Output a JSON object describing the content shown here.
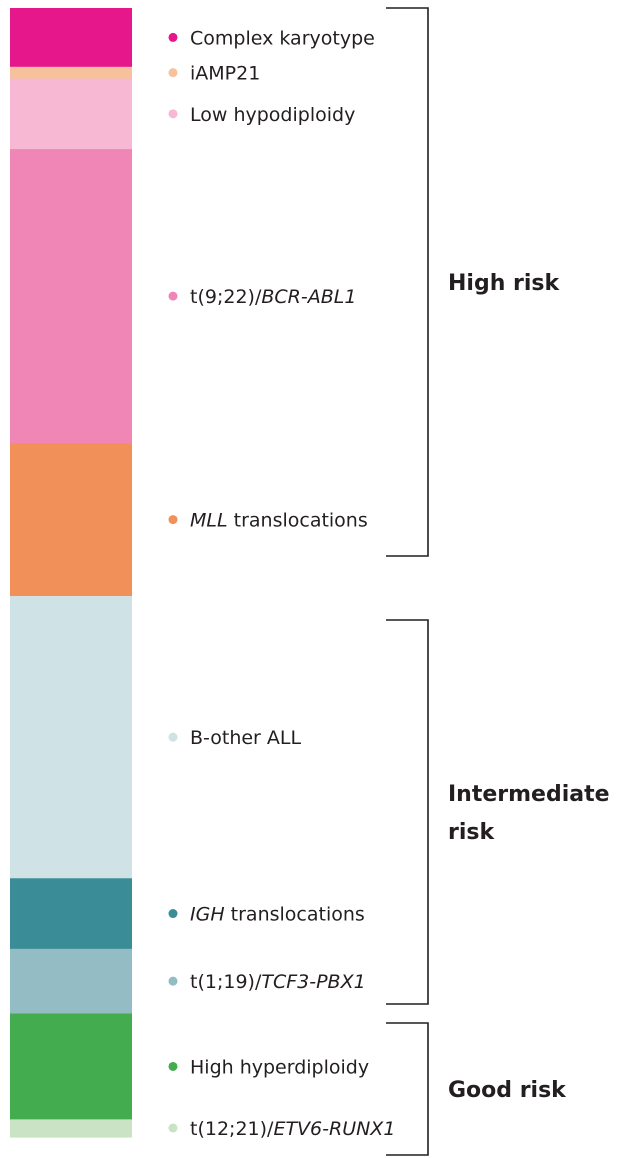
{
  "chart_data": {
    "type": "bar",
    "subtype": "stacked-single-column",
    "categories": [
      "Complex karyotype",
      "iAMP21",
      "Low hypodiploidy",
      "t(9;22)/BCR-ABL1",
      "MLL translocations",
      "B-other ALL",
      "IGH translocations",
      "t(1;19)/TCF3-PBX1",
      "High hyperdiploidy",
      "t(12;21)/ETV6-RUNX1"
    ],
    "series": [
      {
        "values": [
          5,
          1,
          6,
          25,
          13,
          24,
          6,
          5.5,
          9,
          1.5
        ]
      }
    ],
    "legend": [
      {
        "prefix": "",
        "italic": "",
        "suffix": "Complex karyotype",
        "color": "#e6168b"
      },
      {
        "prefix": "",
        "italic": "",
        "suffix": "iAMP21",
        "color": "#f7c19c"
      },
      {
        "prefix": "",
        "italic": "",
        "suffix": "Low hypodiploidy",
        "color": "#f7b8d3"
      },
      {
        "prefix": "t(9;22)/",
        "italic": "BCR-ABL1",
        "suffix": "",
        "color": "#ef86b6"
      },
      {
        "prefix": "",
        "italic": "MLL",
        "suffix": " translocations",
        "color": "#f19159"
      },
      {
        "prefix": "",
        "italic": "",
        "suffix": "B-other ALL",
        "color": "#cfe2e6"
      },
      {
        "prefix": "",
        "italic": "IGH",
        "suffix": " translocations",
        "color": "#3a8d96"
      },
      {
        "prefix": "t(1;19)/",
        "italic": "TCF3-PBX1",
        "suffix": "",
        "color": "#93bcc4"
      },
      {
        "prefix": "",
        "italic": "",
        "suffix": "High hyperdiploidy",
        "color": "#43ac4e"
      },
      {
        "prefix": "t(12;21)/",
        "italic": "ETV6-RUNX1",
        "suffix": "",
        "color": "#c9e3c4"
      }
    ],
    "groups": [
      {
        "lines": [
          "High risk"
        ],
        "from": 0,
        "to": 4
      },
      {
        "lines": [
          "Intermediate",
          "risk"
        ],
        "from": 5,
        "to": 7
      },
      {
        "lines": [
          "Good risk"
        ],
        "from": 8,
        "to": 9
      }
    ],
    "legend_placement": "right",
    "grid": false
  }
}
